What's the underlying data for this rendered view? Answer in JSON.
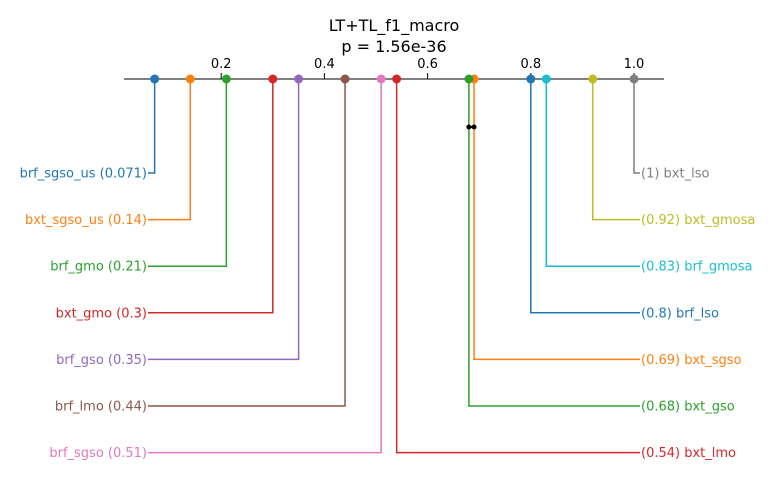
{
  "chart_data": {
    "type": "critical-difference",
    "title": "LT+TL_f1_macro",
    "subtitle": "p = 1.56e-36",
    "xlim": [
      0,
      1.05
    ],
    "ticks": [
      {
        "value": 0.2,
        "label": "0.2"
      },
      {
        "value": 0.4,
        "label": "0.4"
      },
      {
        "value": 0.6,
        "label": "0.6"
      },
      {
        "value": 0.8,
        "label": "0.8"
      },
      {
        "value": 1.0,
        "label": "1.0"
      }
    ],
    "left_items": [
      {
        "name": "brf_sgso_us",
        "value": 0.071,
        "label": "brf_sgso_us (0.071)",
        "color": "#1f77b4"
      },
      {
        "name": "bxt_sgso_us",
        "value": 0.14,
        "label": "bxt_sgso_us (0.14)",
        "color": "#ff7f0e"
      },
      {
        "name": "brf_gmo",
        "value": 0.21,
        "label": "brf_gmo (0.21)",
        "color": "#2ca02c"
      },
      {
        "name": "bxt_gmo",
        "value": 0.3,
        "label": "bxt_gmo (0.3)",
        "color": "#d62728"
      },
      {
        "name": "brf_gso",
        "value": 0.35,
        "label": "brf_gso (0.35)",
        "color": "#9467bd"
      },
      {
        "name": "brf_lmo",
        "value": 0.44,
        "label": "brf_lmo (0.44)",
        "color": "#8c564b"
      },
      {
        "name": "brf_sgso",
        "value": 0.51,
        "label": "brf_sgso (0.51)",
        "color": "#e377c2"
      }
    ],
    "right_items": [
      {
        "name": "bxt_lso",
        "value": 1.0,
        "label": "(1) bxt_lso",
        "color": "#7f7f7f"
      },
      {
        "name": "bxt_gmosa",
        "value": 0.92,
        "label": "(0.92) bxt_gmosa",
        "color": "#bcbd22"
      },
      {
        "name": "brf_gmosa",
        "value": 0.83,
        "label": "(0.83) brf_gmosa",
        "color": "#17becf"
      },
      {
        "name": "brf_lso",
        "value": 0.8,
        "label": "(0.8) brf_lso",
        "color": "#1f77b4"
      },
      {
        "name": "bxt_sgso",
        "value": 0.69,
        "label": "(0.69) bxt_sgso",
        "color": "#ff7f0e"
      },
      {
        "name": "bxt_gso",
        "value": 0.68,
        "label": "(0.68) bxt_gso",
        "color": "#2ca02c"
      },
      {
        "name": "bxt_lmo",
        "value": 0.54,
        "label": "(0.54) bxt_lmo",
        "color": "#d62728"
      }
    ],
    "cliques": [
      {
        "from": 0.68,
        "to": 0.69
      }
    ]
  }
}
